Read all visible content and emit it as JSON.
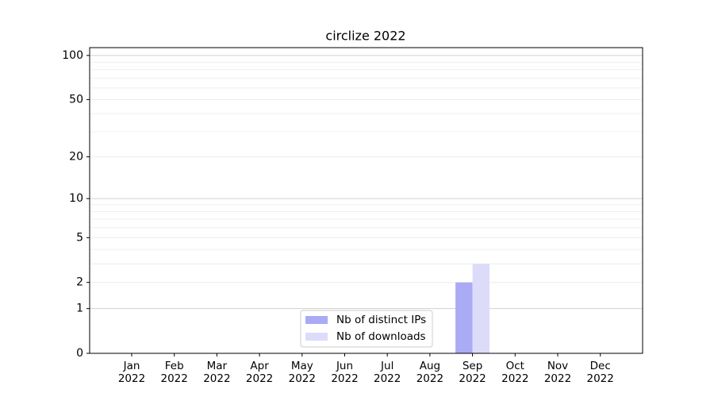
{
  "chart_data": {
    "type": "bar",
    "title": "circlize 2022",
    "categories": [
      "Jan\n2022",
      "Feb\n2022",
      "Mar\n2022",
      "Apr\n2022",
      "May\n2022",
      "Jun\n2022",
      "Jul\n2022",
      "Aug\n2022",
      "Sep\n2022",
      "Oct\n2022",
      "Nov\n2022",
      "Dec\n2022"
    ],
    "series": [
      {
        "name": "Nb of distinct IPs",
        "color": "#aaaaf5",
        "values": [
          0,
          0,
          0,
          0,
          0,
          0,
          0,
          0,
          2,
          0,
          0,
          0
        ]
      },
      {
        "name": "Nb of downloads",
        "color": "#dcdcfa",
        "values": [
          0,
          0,
          0,
          0,
          0,
          0,
          0,
          0,
          3,
          0,
          0,
          0
        ]
      }
    ],
    "yscale": "log1p",
    "ylim": [
      0,
      113
    ],
    "yticks": [
      0,
      1,
      2,
      5,
      10,
      20,
      50,
      100
    ],
    "yminorticks": [
      3,
      4,
      6,
      7,
      8,
      9,
      30,
      40,
      60,
      70,
      80,
      90
    ],
    "grid": true,
    "legend": "lower center"
  }
}
